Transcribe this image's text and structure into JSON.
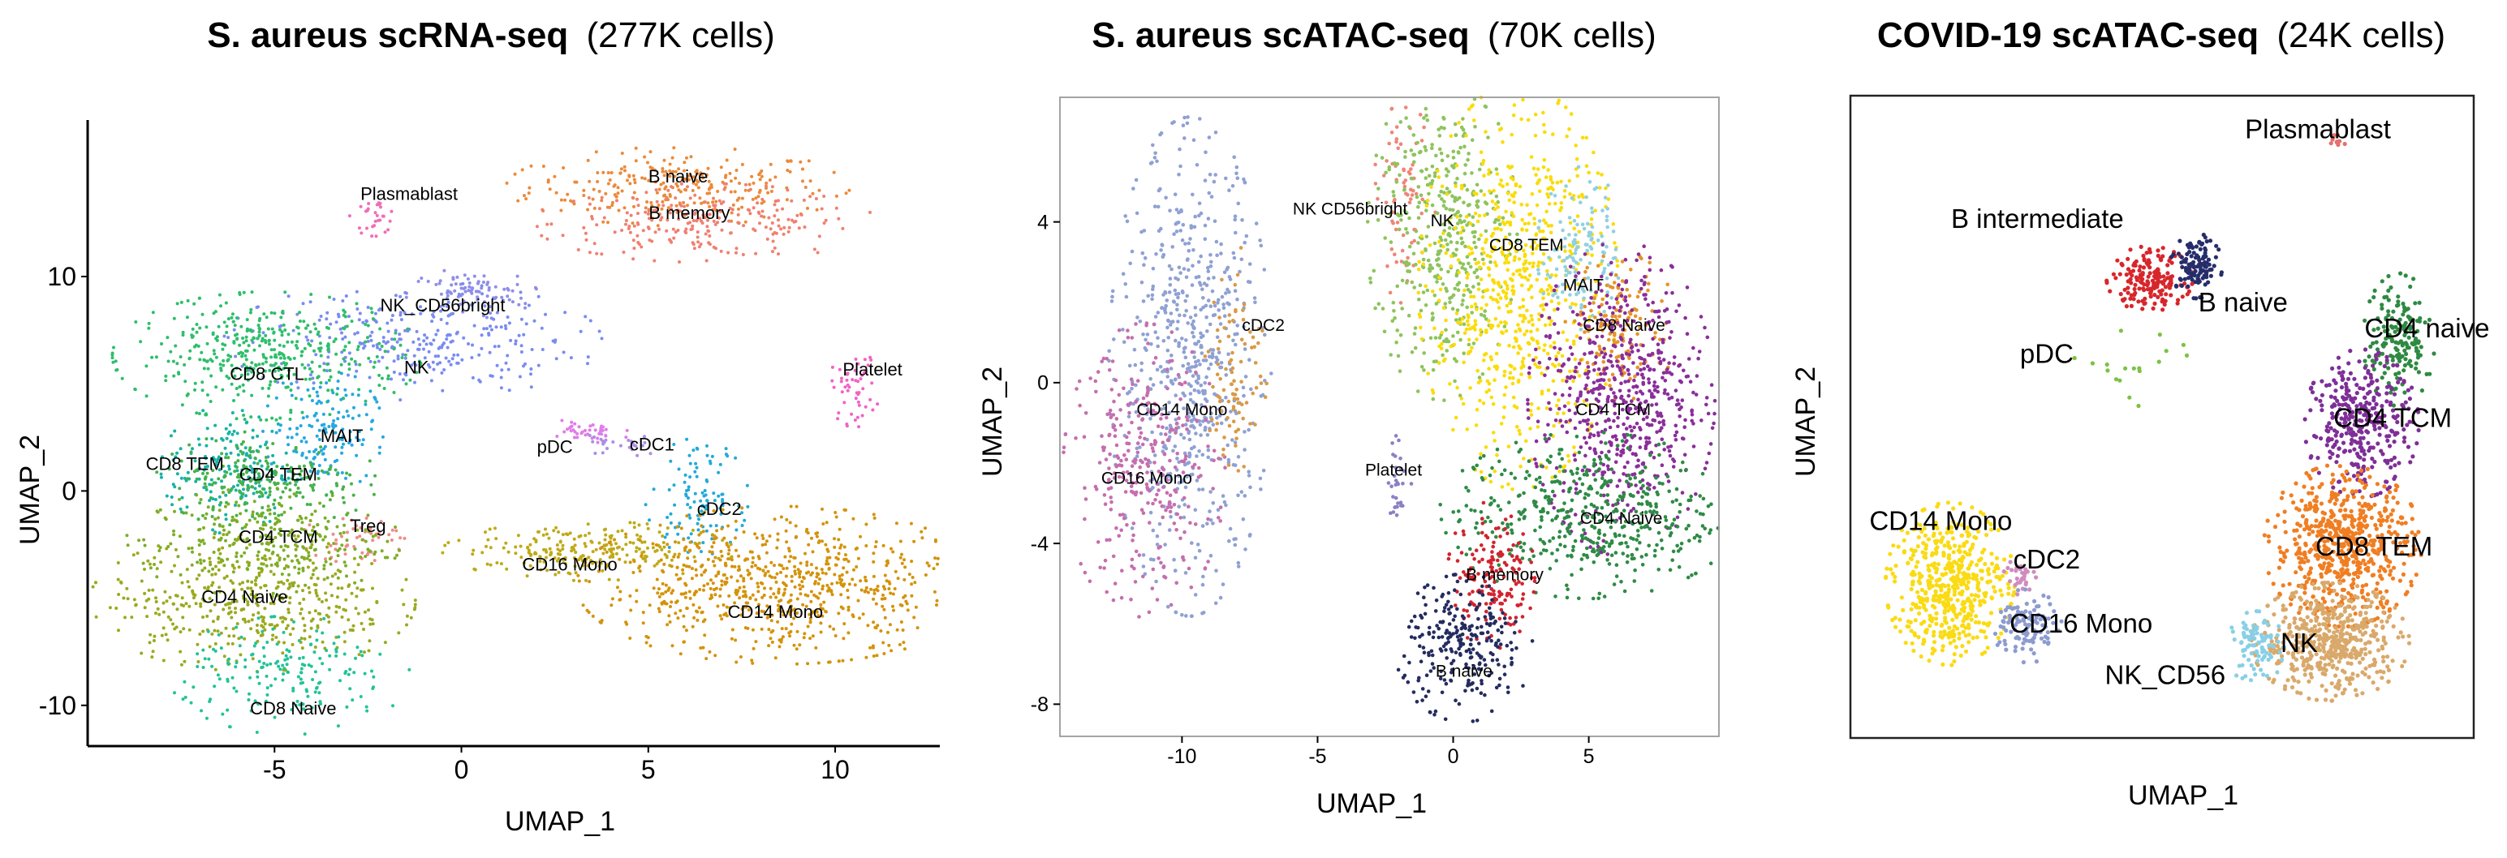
{
  "chart_data": [
    {
      "type": "scatter",
      "title_bold": "S. aureus scRNA-seq",
      "title_rest": "(277K cells)",
      "xlabel": "UMAP_1",
      "ylabel": "UMAP_2",
      "xlim": [
        -10,
        12.8
      ],
      "ylim": [
        -11.9,
        17.3
      ],
      "xticks": [
        -5,
        0,
        5,
        10
      ],
      "yticks": [
        -10,
        0,
        10
      ],
      "frame": "axes-only",
      "grid": false,
      "legend": "none",
      "clusters": [
        {
          "name": "B naive",
          "label": "B naive",
          "color": "#EB8A3A",
          "cx": 5.8,
          "cy": 14.2,
          "sx": 2.0,
          "sy": 0.8,
          "n": 260,
          "lx": 5.8,
          "ly": 14.6
        },
        {
          "name": "B memory",
          "label": "B memory",
          "color": "#F08070",
          "cx": 6.5,
          "cy": 12.5,
          "sx": 2.0,
          "sy": 0.8,
          "n": 240,
          "lx": 6.1,
          "ly": 12.9
        },
        {
          "name": "Plasmablast",
          "label": "Plasmablast",
          "color": "#F26DB7",
          "cx": -2.3,
          "cy": 12.8,
          "sx": 0.3,
          "sy": 0.4,
          "n": 30,
          "lx": -1.4,
          "ly": 13.8
        },
        {
          "name": "NK_CD56bright",
          "label": "NK_CD56bright",
          "color": "#8E8EE8",
          "cx": 0.2,
          "cy": 9.2,
          "sx": 0.8,
          "sy": 0.5,
          "n": 90,
          "lx": -0.5,
          "ly": 8.6
        },
        {
          "name": "NK",
          "label": "NK",
          "color": "#7A8CF0",
          "cx": -1.3,
          "cy": 7.0,
          "sx": 2.2,
          "sy": 1.2,
          "n": 300,
          "lx": -1.2,
          "ly": 5.7
        },
        {
          "name": "Platelet",
          "label": "Platelet",
          "color": "#F063C6",
          "cx": 10.5,
          "cy": 4.8,
          "sx": 0.3,
          "sy": 0.8,
          "n": 50,
          "lx": 11.0,
          "ly": 5.6
        },
        {
          "name": "CD8 CTL",
          "label": "CD8 CTL",
          "color": "#2EBF6B",
          "cx": -5.2,
          "cy": 6.3,
          "sx": 1.8,
          "sy": 1.3,
          "n": 420,
          "lx": -5.2,
          "ly": 5.4
        },
        {
          "name": "MAIT",
          "label": "MAIT",
          "color": "#25A8E0",
          "cx": -3.7,
          "cy": 2.8,
          "sx": 0.7,
          "sy": 1.3,
          "n": 150,
          "lx": -3.2,
          "ly": 2.5
        },
        {
          "name": "CD8 TEM",
          "label": "CD8 TEM",
          "color": "#16B3A6",
          "cx": -6.2,
          "cy": 1.0,
          "sx": 0.8,
          "sy": 1.3,
          "n": 180,
          "lx": -7.4,
          "ly": 1.2
        },
        {
          "name": "CD4 TEM",
          "label": "CD4 TEM",
          "color": "#46B24A",
          "cx": -5.2,
          "cy": 0.5,
          "sx": 1.3,
          "sy": 1.0,
          "n": 220,
          "lx": -4.9,
          "ly": 0.7
        },
        {
          "name": "Treg",
          "label": "Treg",
          "color": "#F08A8A",
          "cx": -2.9,
          "cy": -2.2,
          "sx": 0.6,
          "sy": 0.5,
          "n": 50,
          "lx": -2.5,
          "ly": -1.7
        },
        {
          "name": "CD4 TCM",
          "label": "CD4 TCM",
          "color": "#7DAE26",
          "cx": -5.3,
          "cy": -2.4,
          "sx": 1.6,
          "sy": 1.1,
          "n": 300,
          "lx": -4.9,
          "ly": -2.2
        },
        {
          "name": "CD4 Naive",
          "label": "CD4 Naive",
          "color": "#9BAA1E",
          "cx": -5.6,
          "cy": -5.2,
          "sx": 1.9,
          "sy": 1.4,
          "n": 420,
          "lx": -5.8,
          "ly": -5.0
        },
        {
          "name": "CD8 Naive",
          "label": "CD8 Naive",
          "color": "#22C398",
          "cx": -4.6,
          "cy": -8.6,
          "sx": 1.4,
          "sy": 1.2,
          "n": 180,
          "lx": -4.5,
          "ly": -10.2
        },
        {
          "name": "pDC",
          "label": "pDC",
          "color": "#E07CE8",
          "cx": 3.3,
          "cy": 2.7,
          "sx": 0.5,
          "sy": 0.3,
          "n": 40,
          "lx": 2.5,
          "ly": 2.0
        },
        {
          "name": "cDC1",
          "label": "cDC1",
          "color": "#AD8CE6",
          "cx": 4.3,
          "cy": 2.2,
          "sx": 0.5,
          "sy": 0.3,
          "n": 25,
          "lx": 5.1,
          "ly": 2.1
        },
        {
          "name": "cDC2",
          "label": "cDC2",
          "color": "#22AAD8",
          "cx": 6.3,
          "cy": -0.3,
          "sx": 0.6,
          "sy": 1.2,
          "n": 110,
          "lx": 6.9,
          "ly": -0.9
        },
        {
          "name": "CD16 Mono",
          "label": "CD16 Mono",
          "color": "#BFAA18",
          "cx": 3.4,
          "cy": -2.8,
          "sx": 1.7,
          "sy": 0.6,
          "n": 240,
          "lx": 2.9,
          "ly": -3.5
        },
        {
          "name": "CD14 Mono",
          "label": "CD14 Mono",
          "color": "#D4930A",
          "cx": 8.6,
          "cy": -4.4,
          "sx": 2.4,
          "sy": 1.6,
          "n": 760,
          "lx": 8.4,
          "ly": -5.7
        }
      ]
    },
    {
      "type": "scatter",
      "title_bold": "S. aureus scATAC-seq",
      "title_rest": "(70K cells)",
      "xlabel": "UMAP_1",
      "ylabel": "UMAP_2",
      "xlim": [
        -14.5,
        9.8
      ],
      "ylim": [
        -8.8,
        7.1
      ],
      "xticks": [
        -10,
        -5,
        0,
        5
      ],
      "yticks": [
        -8,
        -4,
        0,
        4
      ],
      "frame": "box",
      "grid": false,
      "legend": "none",
      "clusters": [
        {
          "name": "CD14 Mono",
          "label": "CD14 Mono",
          "color": "#8FA1D3",
          "cx": -9.7,
          "cy": 0.4,
          "sx": 1.3,
          "sy": 2.7,
          "n": 650,
          "lx": -10.0,
          "ly": -0.7
        },
        {
          "name": "CD16 Mono",
          "label": "CD16 Mono",
          "color": "#C56FAE",
          "cx": -11.4,
          "cy": -2.2,
          "sx": 1.3,
          "sy": 1.6,
          "n": 320,
          "lx": -11.3,
          "ly": -2.4
        },
        {
          "name": "cDC2",
          "label": "cDC2",
          "color": "#D99A47",
          "cx": -8.0,
          "cy": 0.4,
          "sx": 0.5,
          "sy": 1.3,
          "n": 90,
          "lx": -7.0,
          "ly": 1.4
        },
        {
          "name": "NK CD56bright",
          "label": "NK CD56bright",
          "color": "#EE8677",
          "cx": -1.8,
          "cy": 4.5,
          "sx": 0.5,
          "sy": 1.1,
          "n": 70,
          "lx": -3.8,
          "ly": 4.3
        },
        {
          "name": "NK",
          "label": "NK",
          "color": "#8DC45C",
          "cx": -0.4,
          "cy": 3.7,
          "sx": 1.2,
          "sy": 1.8,
          "n": 420,
          "lx": -0.4,
          "ly": 4.0
        },
        {
          "name": "CD8 TEM",
          "label": "CD8 TEM",
          "color": "#FADC0A",
          "cx": 2.4,
          "cy": 2.4,
          "sx": 1.6,
          "sy": 2.2,
          "n": 680,
          "lx": 2.7,
          "ly": 3.4
        },
        {
          "name": "MAIT",
          "label": "MAIT",
          "color": "#91D0E0",
          "cx": 4.7,
          "cy": 3.3,
          "sx": 0.7,
          "sy": 0.9,
          "n": 130,
          "lx": 4.8,
          "ly": 2.4
        },
        {
          "name": "CD8 Naive",
          "label": "CD8 Naive",
          "color": "#E59428",
          "cx": 6.2,
          "cy": 1.4,
          "sx": 0.9,
          "sy": 0.8,
          "n": 150,
          "lx": 6.3,
          "ly": 1.4
        },
        {
          "name": "CD4 TCM",
          "label": "CD4 TCM",
          "color": "#8A2E9A",
          "cx": 6.2,
          "cy": -0.4,
          "sx": 1.5,
          "sy": 1.7,
          "n": 640,
          "lx": 5.9,
          "ly": -0.7
        },
        {
          "name": "CD4 Naive",
          "label": "CD4 Naive",
          "color": "#2E8B45",
          "cx": 5.0,
          "cy": -3.3,
          "sx": 2.4,
          "sy": 0.9,
          "n": 480,
          "lx": 6.2,
          "ly": -3.4
        },
        {
          "name": "Platelet",
          "label": "Platelet",
          "color": "#8B7FC3",
          "cx": -2.0,
          "cy": -2.4,
          "sx": 0.2,
          "sy": 0.5,
          "n": 30,
          "lx": -2.2,
          "ly": -2.2
        },
        {
          "name": "B memory",
          "label": "B memory",
          "color": "#D2232E",
          "cx": 1.4,
          "cy": -4.8,
          "sx": 0.7,
          "sy": 0.8,
          "n": 160,
          "lx": 1.9,
          "ly": -4.8
        },
        {
          "name": "B naive",
          "label": "B naive",
          "color": "#242C5E",
          "cx": 0.4,
          "cy": -6.6,
          "sx": 1.1,
          "sy": 0.8,
          "n": 260,
          "lx": 0.4,
          "ly": -7.2
        }
      ]
    },
    {
      "type": "scatter",
      "title_bold": "COVID-19 scATAC-seq",
      "title_rest": "(24K cells)",
      "xlabel": "UMAP_1",
      "ylabel": "UMAP_2",
      "xlim": [
        0,
        100
      ],
      "ylim": [
        0,
        100
      ],
      "xticks": [],
      "yticks": [],
      "frame": "box",
      "grid": false,
      "legend": "none",
      "clusters": [
        {
          "name": "Plasmablast",
          "label": "Plasmablast",
          "color": "#E76F6F",
          "cx": 78.0,
          "cy": 93.0,
          "sx": 0.6,
          "sy": 0.8,
          "n": 10,
          "lx": 75.0,
          "ly": 94.5
        },
        {
          "name": "B intermediate",
          "label": "B intermediate",
          "color": "#D7262B",
          "cx": 48.0,
          "cy": 71.5,
          "sx": 3.0,
          "sy": 2.2,
          "n": 170,
          "lx": 30.0,
          "ly": 80.5
        },
        {
          "name": "B naive",
          "label": "B naive",
          "color": "#262D6A",
          "cx": 55.5,
          "cy": 73.5,
          "sx": 1.8,
          "sy": 2.2,
          "n": 120,
          "lx": 63.0,
          "ly": 67.5
        },
        {
          "name": "pDC",
          "label": "pDC",
          "color": "#7CC243",
          "cx": 45.0,
          "cy": 57.0,
          "sx": 4.0,
          "sy": 5.0,
          "n": 18,
          "lx": 31.5,
          "ly": 59.5
        },
        {
          "name": "CD4 naive",
          "label": "CD4 naive",
          "color": "#2E8A42",
          "cx": 88.0,
          "cy": 62.0,
          "sx": 2.5,
          "sy": 4.5,
          "n": 170,
          "lx": 92.5,
          "ly": 63.5
        },
        {
          "name": "CD4 TCM",
          "label": "CD4 TCM",
          "color": "#7E2F97",
          "cx": 82.0,
          "cy": 49.0,
          "sx": 4.0,
          "sy": 5.0,
          "n": 340,
          "lx": 87.0,
          "ly": 49.5
        },
        {
          "name": "CD8 TEM",
          "label": "CD8 TEM",
          "color": "#F07E22",
          "cx": 79.0,
          "cy": 30.0,
          "sx": 5.5,
          "sy": 5.5,
          "n": 620,
          "lx": 84.0,
          "ly": 29.5
        },
        {
          "name": "NK",
          "label": "NK",
          "color": "#D9A96B",
          "cx": 77.0,
          "cy": 15.0,
          "sx": 5.5,
          "sy": 4.0,
          "n": 520,
          "lx": 72.0,
          "ly": 14.5
        },
        {
          "name": "NK_CD56",
          "label": "NK_CD56",
          "color": "#88D0E6",
          "cx": 65.0,
          "cy": 14.0,
          "sx": 2.0,
          "sy": 2.5,
          "n": 90,
          "lx": 50.5,
          "ly": 9.5
        },
        {
          "name": "CD14 Mono",
          "label": "CD14 Mono",
          "color": "#FADB14",
          "cx": 16.0,
          "cy": 24.0,
          "sx": 4.5,
          "sy": 5.5,
          "n": 520,
          "lx": 14.5,
          "ly": 33.5
        },
        {
          "name": "cDC2",
          "label": "cDC2",
          "color": "#D08CC0",
          "cx": 27.0,
          "cy": 25.0,
          "sx": 1.2,
          "sy": 1.5,
          "n": 30,
          "lx": 31.5,
          "ly": 27.5
        },
        {
          "name": "CD16 Mono",
          "label": "CD16 Mono",
          "color": "#8D9BD0",
          "cx": 28.5,
          "cy": 17.5,
          "sx": 2.5,
          "sy": 2.5,
          "n": 110,
          "lx": 37.0,
          "ly": 17.5
        }
      ]
    }
  ]
}
